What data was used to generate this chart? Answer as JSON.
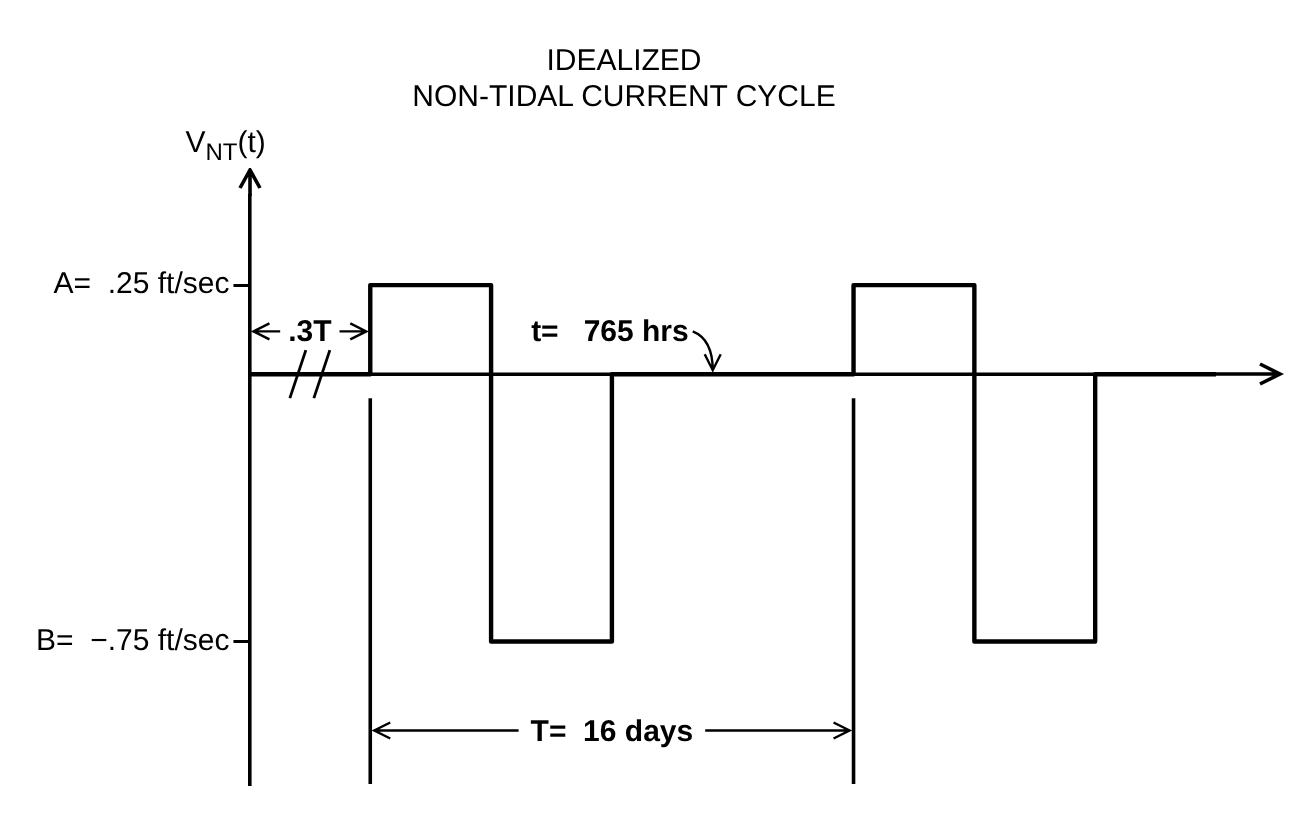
{
  "chart_data": {
    "type": "step",
    "title": "IDEALIZED\nNON-TIDAL CURRENT CYCLE",
    "ylabel": "V$_{NT}$(t)",
    "categories": [
      null,
      null,
      null,
      null,
      null,
      null,
      null,
      null,
      null
    ],
    "series": [
      {
        "color": "#000000",
        "values": [
          0,
          0.25,
          -0.75,
          0,
          0,
          0.25,
          -0.75,
          0,
          0
        ]
      }
    ],
    "ylim": [
      -1.15,
      0.5
    ],
    "yticks": [
      {
        "value": 0.25,
        "label": "A=  .25 ft/sec"
      },
      {
        "value": -0.75,
        "label": "B=  −.75 ft/sec"
      }
    ],
    "annotations": [
      ".3T",
      "t=   765 hrs",
      "T=  16 days"
    ],
    "grid": false,
    "legend": false,
    "tick_labels": "y",
    "marker": "none",
    "line_style": "solid"
  }
}
